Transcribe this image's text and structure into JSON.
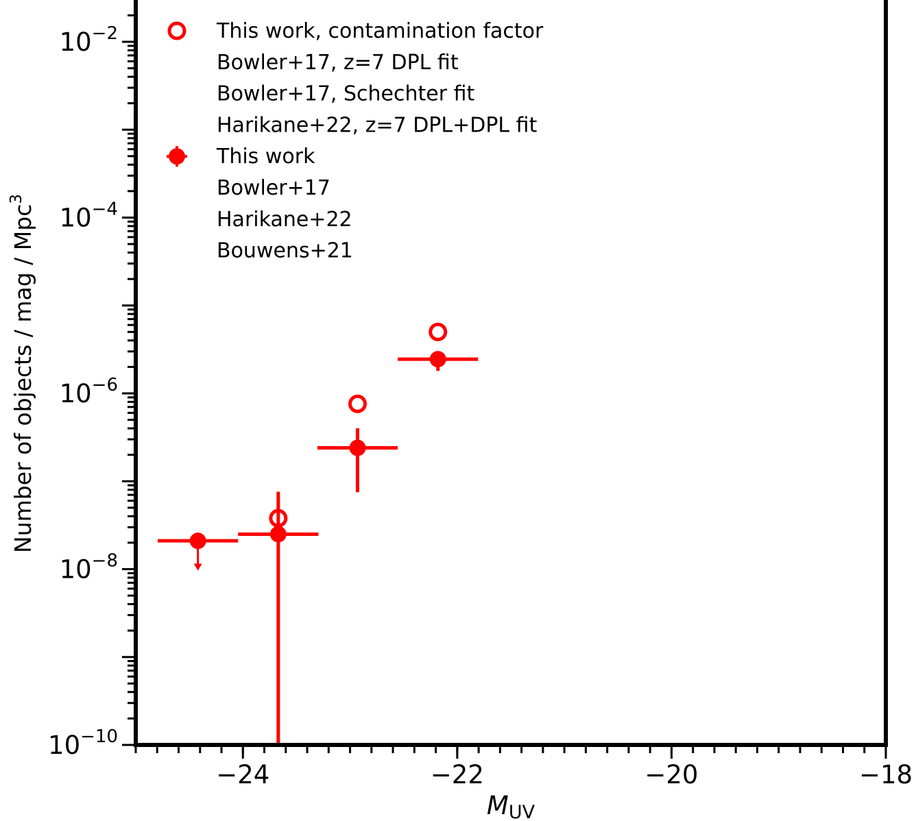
{
  "chart_data": {
    "type": "scatter",
    "title": "",
    "xlabel": "M",
    "xlabel_sub": "UV",
    "ylabel": "Number of objects / mag / Mpc",
    "ylabel_sup": "3",
    "xlim": [
      -25,
      -18
    ],
    "ylim": [
      1e-10,
      0.03
    ],
    "y_scale": "log",
    "x_ticks": [
      -24,
      -22,
      -20,
      -18
    ],
    "x_tick_labels": [
      "−24",
      "−22",
      "−20",
      "−18"
    ],
    "y_ticks": [
      -10,
      -8,
      -6,
      -4,
      -2
    ],
    "grid": false,
    "legend_position": "top-left",
    "legend": [
      {
        "label": "This work, contamination factor",
        "marker": "open-circle",
        "color": "#ff0000"
      },
      {
        "label": "Bowler+17, z=7 DPL fit",
        "marker": "none"
      },
      {
        "label": "Bowler+17, Schechter fit",
        "marker": "none"
      },
      {
        "label": "Harikane+22, z=7 DPL+DPL fit",
        "marker": "none"
      },
      {
        "label": "This work",
        "marker": "filled-circle-errorbar",
        "color": "#ff0000"
      },
      {
        "label": "Bowler+17",
        "marker": "none"
      },
      {
        "label": "Harikane+22",
        "marker": "none"
      },
      {
        "label": "Bouwens+21",
        "marker": "none"
      }
    ],
    "series": [
      {
        "name": "This work, contamination factor",
        "color": "#ff0000",
        "marker": "open-circle",
        "points": [
          {
            "x": -23.67,
            "y": 3.8e-08
          },
          {
            "x": -22.93,
            "y": 7.6e-07
          },
          {
            "x": -22.18,
            "y": 5e-06
          }
        ]
      },
      {
        "name": "This work",
        "color": "#ff0000",
        "marker": "filled-circle",
        "points": [
          {
            "x": -24.42,
            "y": 2.1e-08,
            "xerr": 0.375,
            "upper_limit": true,
            "limit_to": 1e-08
          },
          {
            "x": -23.67,
            "y": 2.5e-08,
            "xerr": 0.375,
            "ylow": 1e-10,
            "yhigh": 7.6e-08
          },
          {
            "x": -22.93,
            "y": 2.4e-07,
            "xerr": 0.375,
            "ylow": 7.5e-08,
            "yhigh": 4e-07
          },
          {
            "x": -22.18,
            "y": 2.45e-06,
            "xerr": 0.375,
            "ylow": 1.8e-06,
            "yhigh": 3e-06
          }
        ]
      }
    ]
  }
}
